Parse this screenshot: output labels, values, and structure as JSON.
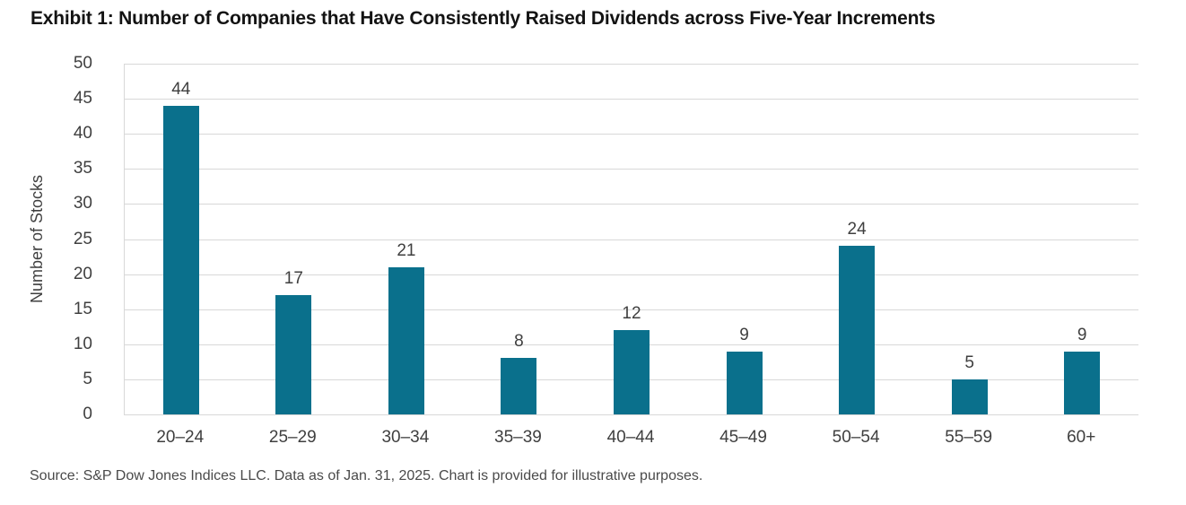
{
  "title": "Exhibit 1: Number of Companies that Have Consistently Raised Dividends across Five-Year Increments",
  "source": "Source: S&P Dow Jones Indices LLC. Data as of Jan. 31, 2025. Chart is provided for illustrative purposes.",
  "chart_data": {
    "type": "bar",
    "categories": [
      "20–24",
      "25–29",
      "30–34",
      "35–39",
      "40–44",
      "45–49",
      "50–54",
      "55–59",
      "60+"
    ],
    "values": [
      44,
      17,
      21,
      8,
      12,
      9,
      24,
      5,
      9
    ],
    "title": "Exhibit 1: Number of Companies that Have Consistently Raised Dividends across Five-Year Increments",
    "xlabel": "",
    "ylabel": "Number of Stocks",
    "ylim": [
      0,
      50
    ],
    "ytick_step": 5,
    "grid": true,
    "legend": "none",
    "data_labels": true,
    "bar_color": "#0A708C"
  },
  "colors": {
    "bar": "#0A708C",
    "gridline": "#D8D8D8",
    "axis_text": "#3F3F3F",
    "title_text": "#131313",
    "source_text": "#4A4A4A"
  }
}
